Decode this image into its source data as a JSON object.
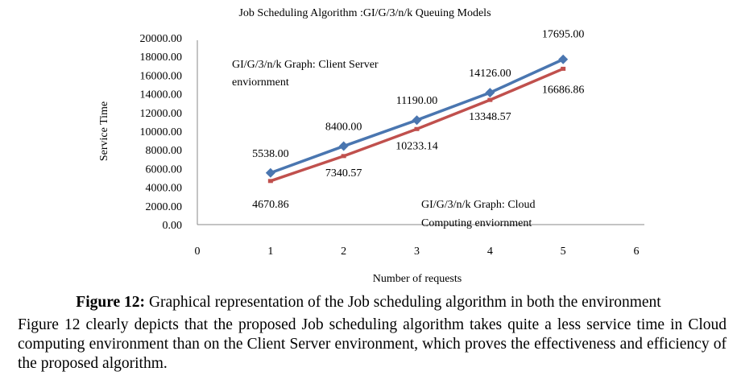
{
  "chart_data": {
    "type": "line",
    "title": "Job Scheduling Algorithm :GI/G/3/n/k Queuing Models",
    "xlabel": "Number of requests",
    "ylabel": "Service Time",
    "xlim": [
      0,
      6
    ],
    "ylim": [
      0,
      20000
    ],
    "x_ticks": [
      "0",
      "1",
      "2",
      "3",
      "4",
      "5",
      "6"
    ],
    "y_ticks": [
      "0.00",
      "2000.00",
      "4000.00",
      "6000.00",
      "8000.00",
      "10000.00",
      "12000.00",
      "14000.00",
      "16000.00",
      "18000.00",
      "20000.00"
    ],
    "grid": false,
    "series": [
      {
        "name": "GI/G/3/n/k Graph: Client Server enviornment",
        "color": "#4a76b0",
        "marker": "diamond",
        "x": [
          1,
          2,
          3,
          4,
          5
        ],
        "values": [
          5538.0,
          8400.0,
          11190.0,
          14126.0,
          17695.0
        ],
        "labels": [
          "5538.00",
          "8400.00",
          "11190.00",
          "14126.00",
          "17695.00"
        ]
      },
      {
        "name": "GI/G/3/n/k Graph: Cloud Computing enviornment",
        "color": "#c0504d",
        "marker": "none",
        "x": [
          1,
          2,
          3,
          4,
          5
        ],
        "values": [
          4670.86,
          7340.57,
          10233.14,
          13348.57,
          16686.86
        ],
        "labels": [
          "4670.86",
          "7340.57",
          "10233.14",
          "13348.57",
          "16686.86"
        ]
      }
    ],
    "annotations": {
      "client_line1": "GI/G/3/n/k Graph: Client Server",
      "client_line2": "enviornment",
      "cloud_line1": "GI/G/3/n/k Graph: Cloud",
      "cloud_line2": "Computing enviornment"
    }
  },
  "caption": {
    "label": "Figure 12:",
    "title": " Graphical representation of the Job scheduling algorithm in both the environment",
    "body": "Figure 12 clearly depicts that the proposed Job scheduling algorithm takes quite a less service time in Cloud computing environment than on the Client Server environment, which proves the effectiveness and efficiency of the proposed algorithm."
  }
}
